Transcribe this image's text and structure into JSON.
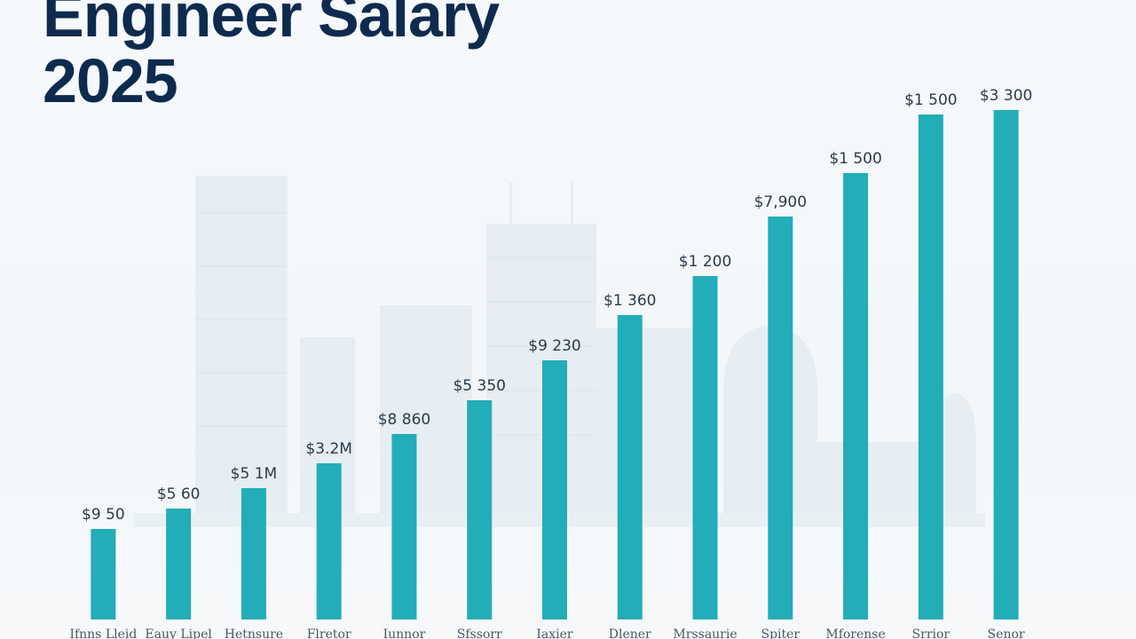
{
  "chart_data": {
    "type": "bar",
    "title": [
      "Engineer Salary",
      "2025"
    ],
    "categories": [
      "Ifnns Lleid",
      "Eauy Lipel",
      "Hetnsure",
      "Flretor",
      "Iunnor",
      "Sfssorr",
      "Iaxier",
      "Dlener",
      "Mrssaurie",
      "Spiter",
      "Mforense",
      "Srrior",
      "Senor"
    ],
    "value_labels": [
      "$9 50",
      "$5 60",
      "$5 1M",
      "$3.2M",
      "$8 860",
      "$5 350",
      "$9 230",
      "$1 360",
      "$1 200",
      "$7,900",
      "$1 500",
      "$1 500",
      "$3 300"
    ],
    "values": [
      102,
      125,
      148,
      176,
      209,
      247,
      292,
      343,
      387,
      454,
      503,
      569,
      574
    ],
    "ylim": [
      0,
      650
    ],
    "bar_color": "#22adb8",
    "grid": false,
    "xlabel": "",
    "ylabel": ""
  }
}
